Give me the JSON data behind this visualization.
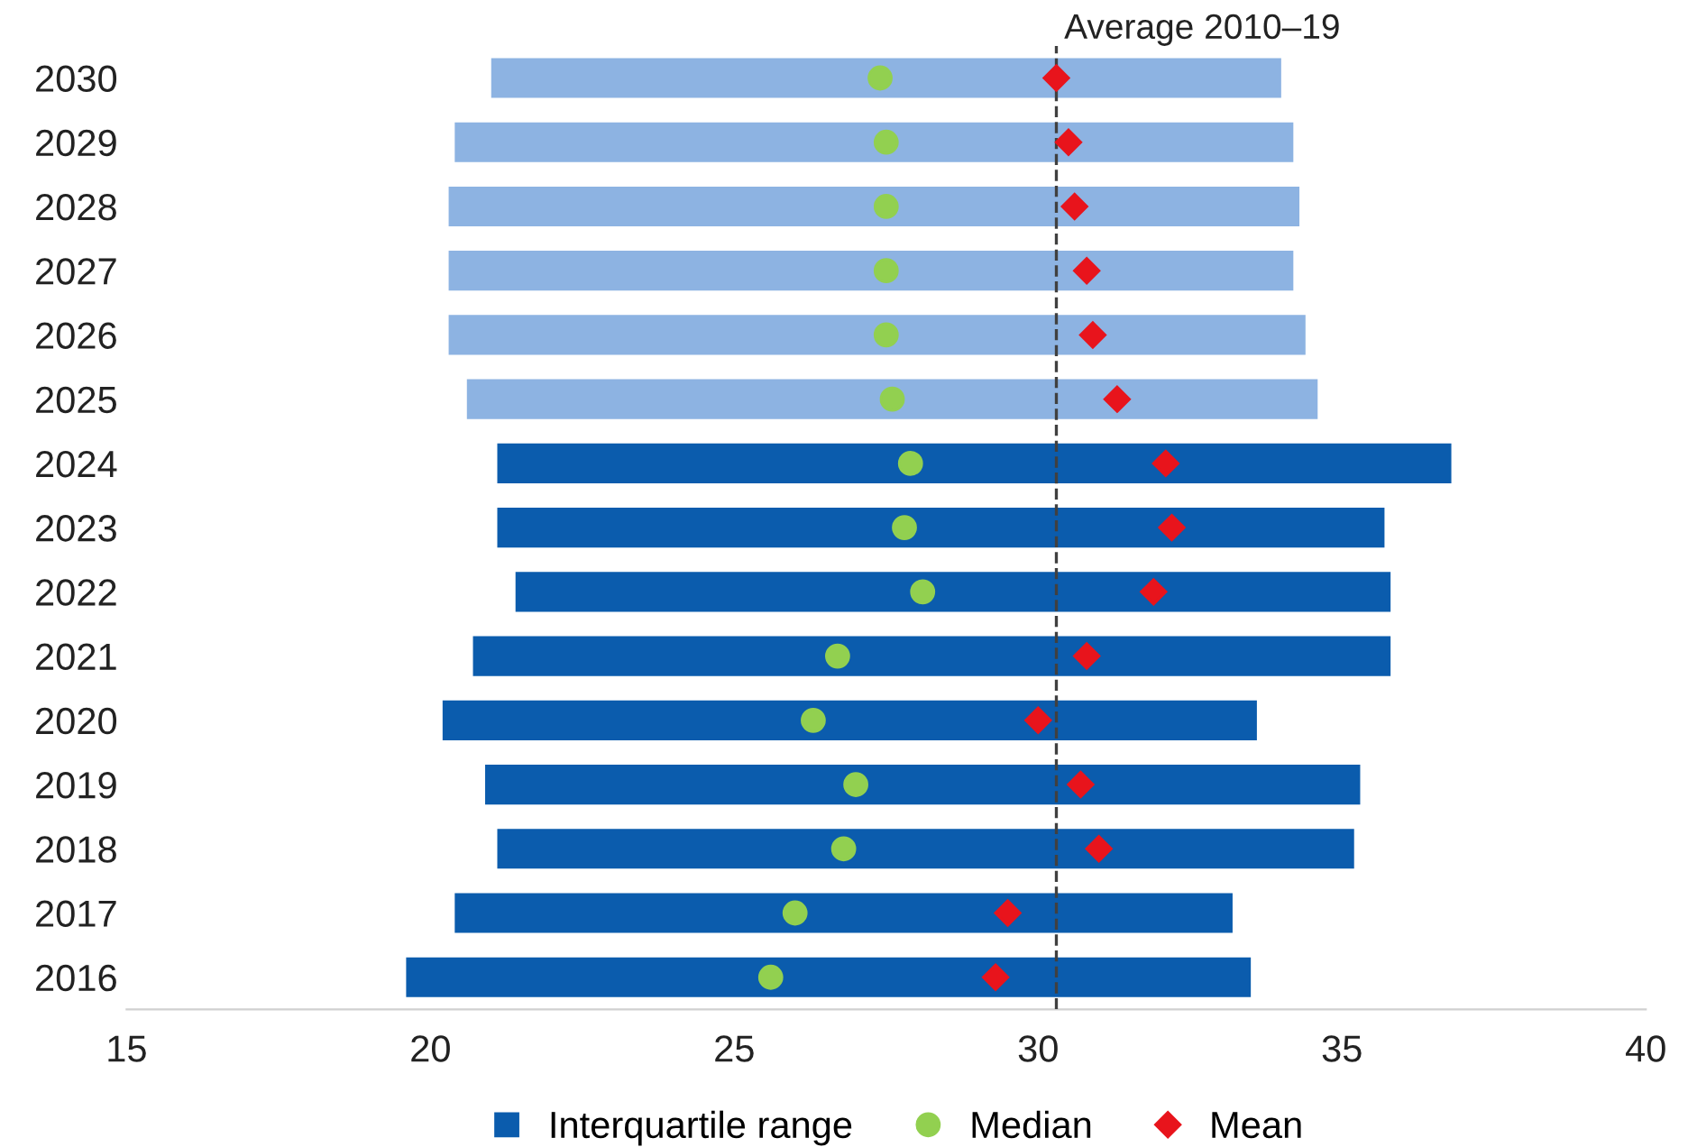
{
  "chart_data": {
    "type": "bar",
    "orientation": "horizontal",
    "categories": [
      "2030",
      "2029",
      "2028",
      "2027",
      "2026",
      "2025",
      "2024",
      "2023",
      "2022",
      "2021",
      "2020",
      "2019",
      "2018",
      "2017",
      "2016"
    ],
    "series": [
      {
        "name": "Interquartile range",
        "color": "#0b5cad",
        "base": [
          21.0,
          20.4,
          20.3,
          20.3,
          20.3,
          20.6,
          21.1,
          21.1,
          21.4,
          20.7,
          20.2,
          20.9,
          21.1,
          20.4,
          19.6
        ],
        "values": [
          13.0,
          13.8,
          14.0,
          13.9,
          14.1,
          14.0,
          15.7,
          14.6,
          14.4,
          15.1,
          13.4,
          14.4,
          14.1,
          12.8,
          13.9
        ],
        "colors": [
          "#8db3e2",
          "#8db3e2",
          "#8db3e2",
          "#8db3e2",
          "#8db3e2",
          "#8db3e2",
          "#0b5cad",
          "#0b5cad",
          "#0b5cad",
          "#0b5cad",
          "#0b5cad",
          "#0b5cad",
          "#0b5cad",
          "#0b5cad",
          "#0b5cad"
        ]
      },
      {
        "name": "Median",
        "type": "scatter",
        "marker": "circle",
        "color": "#92d050",
        "values": [
          27.4,
          27.5,
          27.5,
          27.5,
          27.5,
          27.6,
          27.9,
          27.8,
          28.1,
          26.7,
          26.3,
          27.0,
          26.8,
          26.0,
          25.6
        ]
      },
      {
        "name": "Mean",
        "type": "scatter",
        "marker": "diamond",
        "color": "#e8141c",
        "values": [
          30.3,
          30.5,
          30.6,
          30.8,
          30.9,
          31.3,
          32.1,
          32.2,
          31.9,
          30.8,
          30.0,
          30.7,
          31.0,
          29.5,
          29.3
        ]
      }
    ],
    "xlim": [
      15,
      40
    ],
    "xticks": [
      15,
      20,
      25,
      30,
      35,
      40
    ],
    "ref_lines": [
      {
        "axis": "x",
        "value": 30.3,
        "label": "Average 2010–19",
        "line_style": "dashed",
        "color": "#404040"
      }
    ],
    "legend": "bottom"
  }
}
